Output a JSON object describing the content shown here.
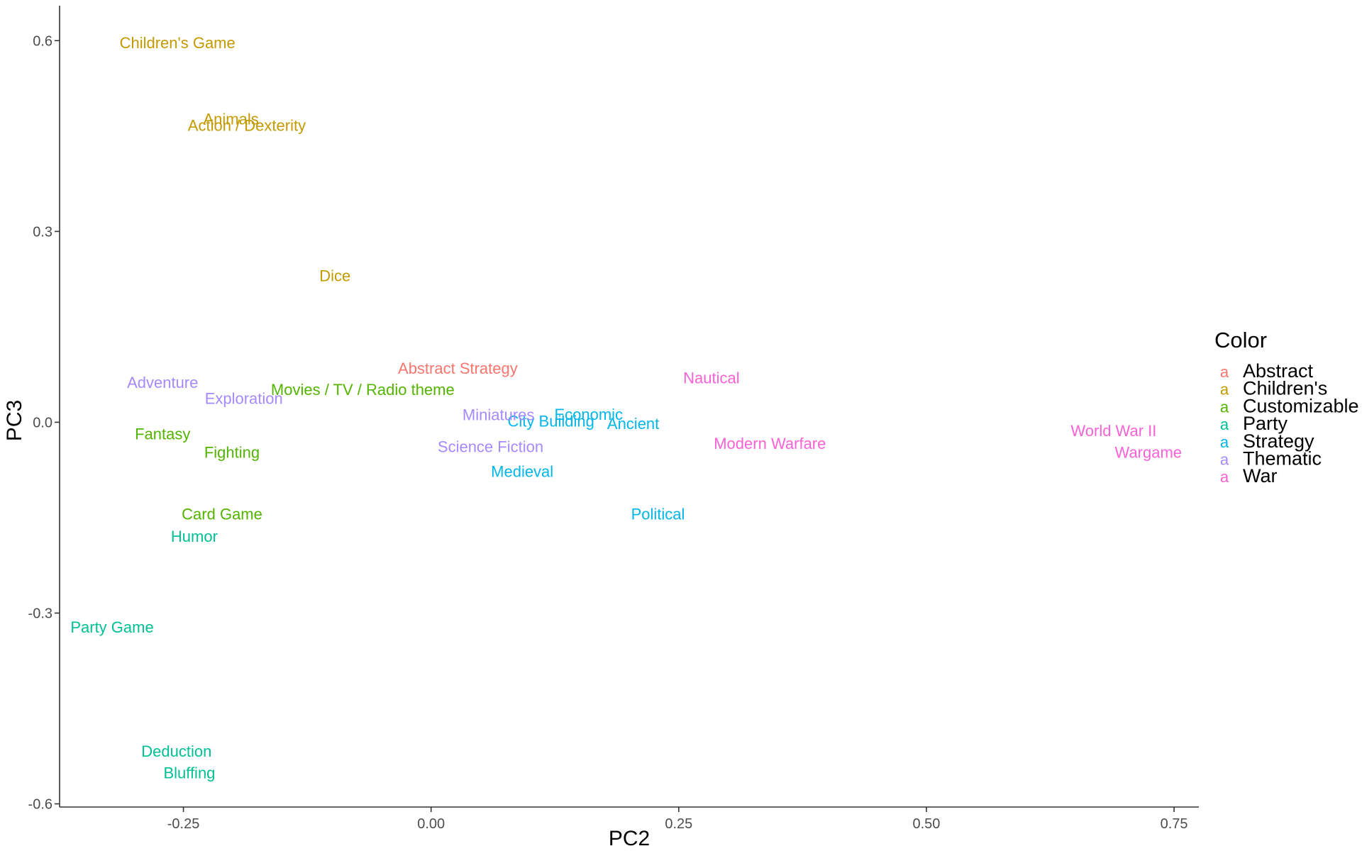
{
  "chart_data": {
    "type": "scatter",
    "xlabel": "PC2",
    "ylabel": "PC3",
    "xlim": [
      -0.375,
      0.775
    ],
    "ylim": [
      -0.605,
      0.655
    ],
    "x_ticks": [
      {
        "value": -0.25,
        "label": "-0.25"
      },
      {
        "value": 0.0,
        "label": "0.00"
      },
      {
        "value": 0.25,
        "label": "0.25"
      },
      {
        "value": 0.5,
        "label": "0.50"
      },
      {
        "value": 0.75,
        "label": "0.75"
      }
    ],
    "y_ticks": [
      {
        "value": 0.6,
        "label": "0.6"
      },
      {
        "value": 0.3,
        "label": "0.3"
      },
      {
        "value": 0.0,
        "label": "0.0"
      },
      {
        "value": -0.3,
        "label": "-0.3"
      },
      {
        "value": -0.6,
        "label": "-0.6"
      }
    ],
    "grid": false,
    "legend": {
      "title": "Color",
      "placement": "right",
      "key_glyph": "a",
      "entries": [
        {
          "name": "Abstract",
          "color": "#F8766D"
        },
        {
          "name": "Children's",
          "color": "#C49A00"
        },
        {
          "name": "Customizable",
          "color": "#53B400"
        },
        {
          "name": "Party",
          "color": "#00C094"
        },
        {
          "name": "Strategy",
          "color": "#00B6EB"
        },
        {
          "name": "Thematic",
          "color": "#A58AFF"
        },
        {
          "name": "War",
          "color": "#FB61D7"
        }
      ]
    },
    "series": [
      {
        "name": "Abstract",
        "color": "#F8766D",
        "points": [
          {
            "label": "Abstract Strategy",
            "x": 0.027,
            "y": 0.085
          }
        ]
      },
      {
        "name": "Children's",
        "color": "#C49A00",
        "points": [
          {
            "label": "Children's Game",
            "x": -0.256,
            "y": 0.597
          },
          {
            "label": "Animals",
            "x": -0.202,
            "y": 0.477
          },
          {
            "label": "Action / Dexterity",
            "x": -0.186,
            "y": 0.467
          },
          {
            "label": "Dice",
            "x": -0.097,
            "y": 0.231
          }
        ]
      },
      {
        "name": "Customizable",
        "color": "#53B400",
        "points": [
          {
            "label": "Movies / TV / Radio theme",
            "x": -0.069,
            "y": 0.052
          },
          {
            "label": "Fantasy",
            "x": -0.271,
            "y": -0.018
          },
          {
            "label": "Fighting",
            "x": -0.201,
            "y": -0.047
          },
          {
            "label": "Card Game",
            "x": -0.211,
            "y": -0.144
          }
        ]
      },
      {
        "name": "Party",
        "color": "#00C094",
        "points": [
          {
            "label": "Humor",
            "x": -0.239,
            "y": -0.179
          },
          {
            "label": "Party Game",
            "x": -0.322,
            "y": -0.322
          },
          {
            "label": "Deduction",
            "x": -0.257,
            "y": -0.517
          },
          {
            "label": "Bluffing",
            "x": -0.244,
            "y": -0.551
          }
        ]
      },
      {
        "name": "Strategy",
        "color": "#00B6EB",
        "points": [
          {
            "label": "Economic",
            "x": 0.159,
            "y": 0.013
          },
          {
            "label": "City Building",
            "x": 0.121,
            "y": 0.002
          },
          {
            "label": "Ancient",
            "x": 0.204,
            "y": -0.002
          },
          {
            "label": "Medieval",
            "x": 0.092,
            "y": -0.077
          },
          {
            "label": "Political",
            "x": 0.229,
            "y": -0.144
          }
        ]
      },
      {
        "name": "Thematic",
        "color": "#A58AFF",
        "points": [
          {
            "label": "Adventure",
            "x": -0.271,
            "y": 0.063
          },
          {
            "label": "Exploration",
            "x": -0.189,
            "y": 0.038
          },
          {
            "label": "Miniatures",
            "x": 0.068,
            "y": 0.012
          },
          {
            "label": "Science Fiction",
            "x": 0.06,
            "y": -0.038
          }
        ]
      },
      {
        "name": "War",
        "color": "#FB61D7",
        "points": [
          {
            "label": "Nautical",
            "x": 0.283,
            "y": 0.07
          },
          {
            "label": "Modern Warfare",
            "x": 0.342,
            "y": -0.033
          },
          {
            "label": "World War II",
            "x": 0.689,
            "y": -0.013
          },
          {
            "label": "Wargame",
            "x": 0.724,
            "y": -0.047
          }
        ]
      }
    ]
  }
}
